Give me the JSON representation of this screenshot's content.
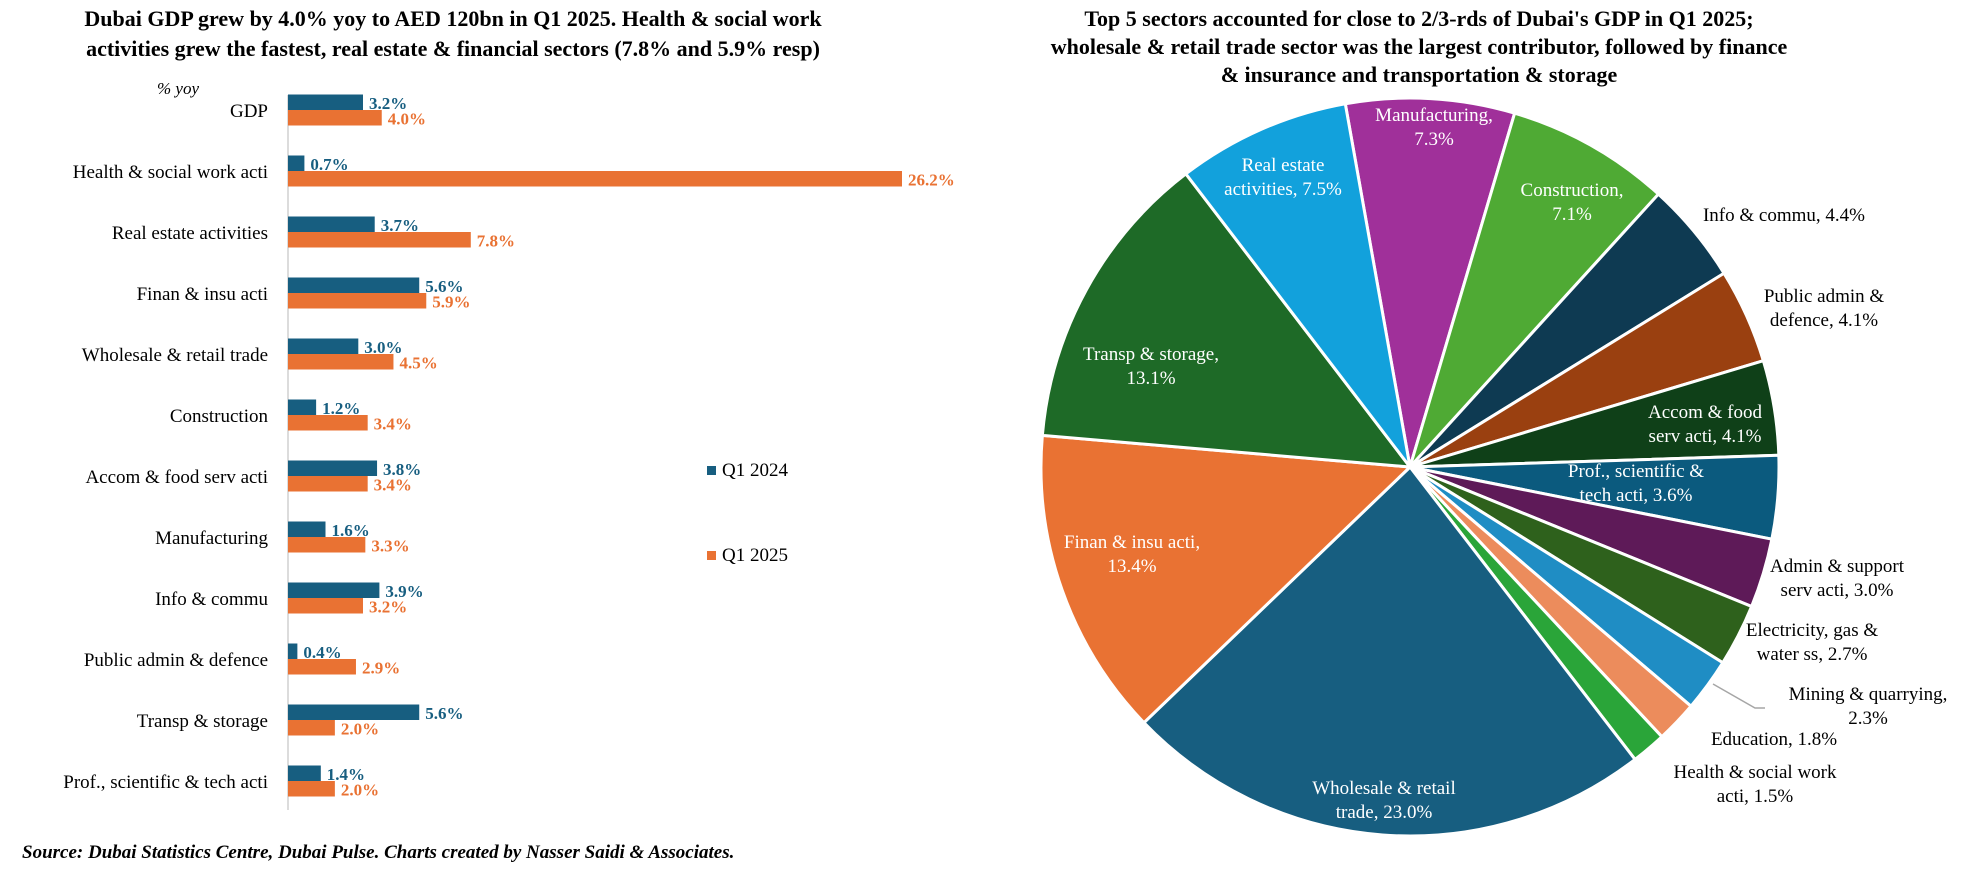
{
  "chart_data": [
    {
      "type": "bar",
      "orientation": "horizontal",
      "title": "Dubai GDP grew by 4.0% yoy to AED 120bn in Q1 2025. Health & social work activities grew the fastest, real estate & financial sectors (7.8% and 5.9% resp)",
      "title_lines": [
        "Dubai GDP grew by 4.0% yoy to AED 120bn in Q1 2025. Health & social work",
        "activities grew the fastest, real estate & financial sectors (7.8% and 5.9% resp)"
      ],
      "unit_label": "% yoy",
      "categories": [
        "GDP",
        "Health & social work acti",
        "Real estate activities",
        "Finan & insu acti",
        "Wholesale & retail trade",
        "Construction",
        "Accom & food serv acti",
        "Manufacturing",
        "Info & commu",
        "Public admin & defence",
        "Transp & storage",
        "Prof., scientific & tech acti"
      ],
      "series": [
        {
          "name": "Q1 2024",
          "color": "#175e80",
          "values": [
            3.2,
            0.7,
            3.7,
            5.6,
            3.0,
            1.2,
            3.8,
            1.6,
            3.9,
            0.4,
            5.6,
            1.4
          ],
          "labels": [
            "3.2%",
            "0.7%",
            "3.7%",
            "5.6%",
            "3.0%",
            "1.2%",
            "3.8%",
            "1.6%",
            "3.9%",
            "0.4%",
            "5.6%",
            "1.4%"
          ]
        },
        {
          "name": "Q1 2025",
          "color": "#e97233",
          "values": [
            4.0,
            26.2,
            7.8,
            5.9,
            4.5,
            3.4,
            3.4,
            3.3,
            3.2,
            2.9,
            2.0,
            2.0
          ],
          "labels": [
            "4.0%",
            "26.2%",
            "7.8%",
            "5.9%",
            "4.5%",
            "3.4%",
            "3.4%",
            "3.3%",
            "3.2%",
            "2.9%",
            "2.0%",
            "2.0%"
          ]
        }
      ],
      "xlim": [
        0,
        26.2
      ],
      "grid": false,
      "legend": "right"
    },
    {
      "type": "pie",
      "title": "Top 5 sectors accounted for close to 2/3-rds of Dubai's GDP in Q1 2025; wholesale & retail trade sector was the largest contributor, followed by finance & insurance and transportation & storage",
      "title_lines": [
        "Top 5 sectors accounted for close to 2/3-rds of Dubai's GDP in Q1 2025;",
        "wholesale & retail trade sector was the largest contributor, followed by finance",
        "& insurance and transportation & storage"
      ],
      "slices": [
        {
          "label": "Manufacturing, 7.3%",
          "lines": [
            "Manufacturing,",
            "7.3%"
          ],
          "value": 7.3,
          "color": "#a0309a"
        },
        {
          "label": "Construction, 7.1%",
          "lines": [
            "Construction,",
            "7.1%"
          ],
          "value": 7.1,
          "color": "#4faa34"
        },
        {
          "label": "Info & commu, 4.4%",
          "lines": [
            "Info & commu, 4.4%"
          ],
          "value": 4.4,
          "color": "#0e3a52"
        },
        {
          "label": "Public admin & defence, 4.1%",
          "lines": [
            "Public admin &",
            "defence, 4.1%"
          ],
          "value": 4.1,
          "color": "#9a4010"
        },
        {
          "label": "Accom & food serv acti, 4.1%",
          "lines": [
            "Accom & food",
            "serv acti, 4.1%"
          ],
          "value": 4.1,
          "color": "#0f4018"
        },
        {
          "label": "Prof., scientific & tech acti, 3.6%",
          "lines": [
            "Prof., scientific &",
            "tech acti, 3.6%"
          ],
          "value": 3.6,
          "color": "#0b5a7e"
        },
        {
          "label": "Admin & support serv acti, 3.0%",
          "lines": [
            "Admin & support",
            "serv acti, 3.0%"
          ],
          "value": 3.0,
          "color": "#5e1a58"
        },
        {
          "label": "Electricity, gas & water ss, 2.7%",
          "lines": [
            "Electricity, gas &",
            "water ss, 2.7%"
          ],
          "value": 2.7,
          "color": "#2e611c"
        },
        {
          "label": "Mining & quarrying, 2.3%",
          "lines": [
            "Mining & quarrying,",
            "2.3%"
          ],
          "value": 2.3,
          "color": "#1f8dc4"
        },
        {
          "label": "Education, 1.8%",
          "lines": [
            "Education, 1.8%"
          ],
          "value": 1.8,
          "color": "#ec8c5c"
        },
        {
          "label": "Health & social work acti, 1.5%",
          "lines": [
            "Health & social work",
            "acti, 1.5%"
          ],
          "value": 1.5,
          "color": "#2aa539"
        },
        {
          "label": "Wholesale & retail trade, 23.0%",
          "lines": [
            "Wholesale & retail",
            "trade, 23.0%"
          ],
          "value": 23.0,
          "color": "#175e80"
        },
        {
          "label": "Finan & insu acti, 13.4%",
          "lines": [
            "Finan & insu acti,",
            "13.4%"
          ],
          "value": 13.4,
          "color": "#e97233"
        },
        {
          "label": "Transp & storage, 13.1%",
          "lines": [
            "Transp & storage,",
            "13.1%"
          ],
          "value": 13.1,
          "color": "#1e6a27"
        },
        {
          "label": "Real estate activities, 7.5%",
          "lines": [
            "Real estate",
            "activities, 7.5%"
          ],
          "value": 7.5,
          "color": "#12a1dc"
        }
      ]
    }
  ],
  "source": "Source: Dubai Statistics Centre, Dubai Pulse. Charts created by Nasser Saidi & Associates."
}
